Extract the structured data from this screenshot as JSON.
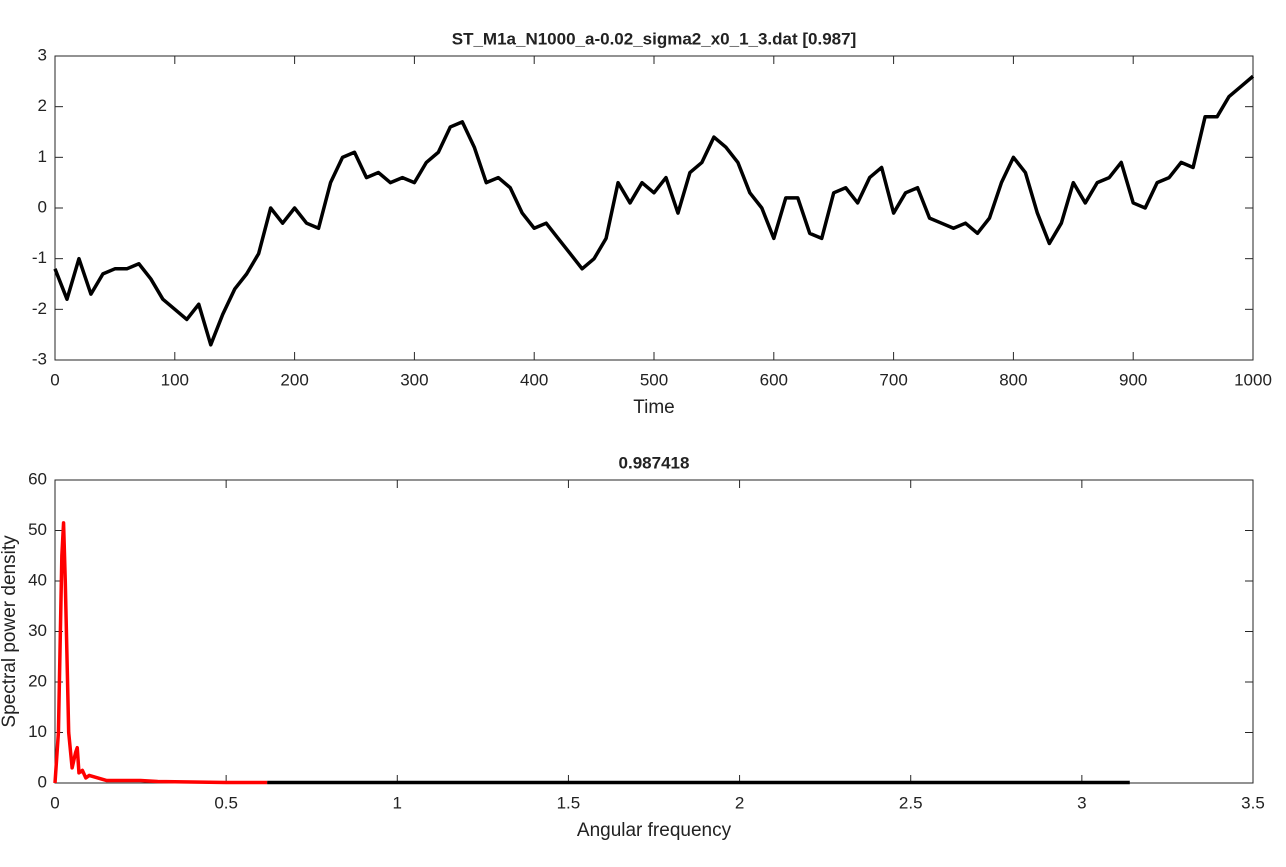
{
  "chart_data": [
    {
      "type": "line",
      "title": "ST_M1a_N1000_a-0.02_sigma2_x0_1_3.dat [0.987]",
      "xlabel": "Time",
      "color": "#000000",
      "x": [
        0,
        10,
        20,
        30,
        40,
        50,
        60,
        70,
        80,
        90,
        100,
        110,
        120,
        130,
        140,
        150,
        160,
        170,
        180,
        190,
        200,
        210,
        220,
        230,
        240,
        250,
        260,
        270,
        280,
        290,
        300,
        310,
        320,
        330,
        340,
        350,
        360,
        370,
        380,
        390,
        400,
        410,
        420,
        430,
        440,
        450,
        460,
        470,
        480,
        490,
        500,
        510,
        520,
        530,
        540,
        550,
        560,
        570,
        580,
        590,
        600,
        610,
        620,
        630,
        640,
        650,
        660,
        670,
        680,
        690,
        700,
        710,
        720,
        730,
        740,
        750,
        760,
        770,
        780,
        790,
        800,
        810,
        820,
        830,
        840,
        850,
        860,
        870,
        880,
        890,
        900,
        910,
        920,
        930,
        940,
        950,
        960,
        970,
        980,
        990,
        1000
      ],
      "values": [
        -1.2,
        -1.8,
        -1.0,
        -1.7,
        -1.3,
        -1.2,
        -1.2,
        -1.1,
        -1.4,
        -1.8,
        -2.0,
        -2.2,
        -1.9,
        -2.7,
        -2.1,
        -1.6,
        -1.3,
        -0.9,
        0.0,
        -0.3,
        0.0,
        -0.3,
        -0.4,
        0.5,
        1.0,
        1.1,
        0.6,
        0.7,
        0.5,
        0.6,
        0.5,
        0.9,
        1.1,
        1.6,
        1.7,
        1.2,
        0.5,
        0.6,
        0.4,
        -0.1,
        -0.4,
        -0.3,
        -0.6,
        -0.9,
        -1.2,
        -1.0,
        -0.6,
        0.5,
        0.1,
        0.5,
        0.3,
        0.6,
        -0.1,
        0.7,
        0.9,
        1.4,
        1.2,
        0.9,
        0.3,
        0.0,
        -0.6,
        0.2,
        0.2,
        -0.5,
        -0.6,
        0.3,
        0.4,
        0.1,
        0.6,
        0.8,
        -0.1,
        0.3,
        0.4,
        -0.2,
        -0.3,
        -0.4,
        -0.3,
        -0.5,
        -0.2,
        0.5,
        1.0,
        0.7,
        -0.1,
        -0.7,
        -0.3,
        0.5,
        0.1,
        0.5,
        0.6,
        0.9,
        0.1,
        0.0,
        0.5,
        0.6,
        0.9,
        0.8,
        1.8,
        1.8,
        2.2,
        2.4,
        2.6
      ],
      "xlim": [
        0,
        1000
      ],
      "xticks": [
        0,
        100,
        200,
        300,
        400,
        500,
        600,
        700,
        800,
        900,
        1000
      ],
      "ylim": [
        -3,
        3
      ],
      "yticks": [
        -3,
        -2,
        -1,
        0,
        1,
        2,
        3
      ]
    },
    {
      "type": "line",
      "title": "0.987418",
      "xlabel": "Angular frequency",
      "ylabel": "Spectral power density",
      "series": [
        {
          "color": "#ff0000",
          "x": [
            0,
            0.01,
            0.02,
            0.025,
            0.03,
            0.04,
            0.05,
            0.06,
            0.065,
            0.07,
            0.08,
            0.09,
            0.1,
            0.15,
            0.2,
            0.25,
            0.3,
            0.4,
            0.5,
            0.62
          ],
          "values": [
            0,
            10,
            45,
            51.5,
            40,
            10,
            3,
            6,
            7,
            2,
            2.5,
            1,
            1.5,
            0.5,
            0.5,
            0.5,
            0.3,
            0.2,
            0.1,
            0.1
          ]
        },
        {
          "color": "#000000",
          "x": [
            0.62,
            1,
            2,
            3.14
          ],
          "values": [
            0.1,
            0.1,
            0.1,
            0.1
          ]
        }
      ],
      "xlim": [
        0,
        3.5
      ],
      "xticks": [
        0,
        0.5,
        1,
        1.5,
        2,
        2.5,
        3,
        3.5
      ],
      "ylim": [
        0,
        60
      ],
      "yticks": [
        0,
        10,
        20,
        30,
        40,
        50,
        60
      ]
    }
  ]
}
